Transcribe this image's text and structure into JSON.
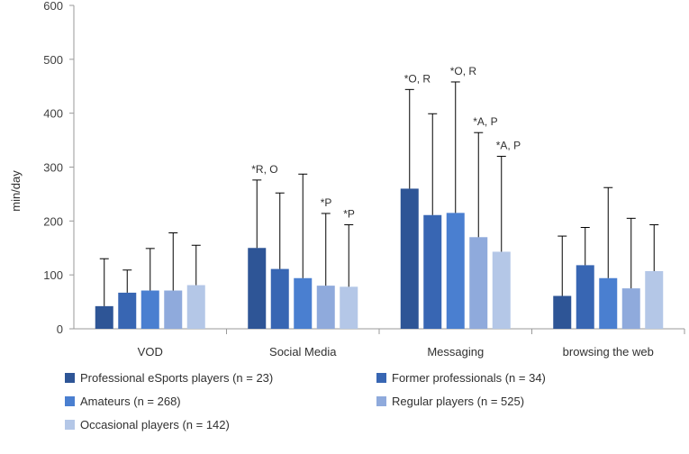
{
  "chart_data": {
    "type": "bar",
    "title": "",
    "xlabel": "",
    "ylabel": "min/day",
    "ylim": [
      0,
      600
    ],
    "yticks": [
      "0",
      "100",
      "200",
      "300",
      "400",
      "500",
      "600"
    ],
    "grid": false,
    "legend_position": "bottom",
    "categories": [
      "VOD",
      "Social Media",
      "Messaging",
      "browsing the web"
    ],
    "series": [
      {
        "name": "Professional eSports players (n = 23)",
        "color": "#2e5596",
        "values": [
          42,
          150,
          260,
          61
        ],
        "error_upper": [
          130,
          276,
          444,
          172
        ],
        "annotations": [
          "",
          "*R, O",
          "*O, R",
          ""
        ]
      },
      {
        "name": "Former professionals (n = 34)",
        "color": "#3866b3",
        "values": [
          67,
          111,
          211,
          118
        ],
        "error_upper": [
          109,
          252,
          399,
          188
        ],
        "annotations": [
          "",
          "",
          "",
          ""
        ]
      },
      {
        "name": "Amateurs (n = 268)",
        "color": "#4a7fd0",
        "values": [
          71,
          94,
          215,
          94
        ],
        "error_upper": [
          149,
          287,
          458,
          262
        ],
        "annotations": [
          "",
          "",
          "*O, R",
          ""
        ]
      },
      {
        "name": "Regular players (n = 525)",
        "color": "#8faadc",
        "values": [
          71,
          80,
          170,
          75
        ],
        "error_upper": [
          178,
          214,
          364,
          205
        ],
        "annotations": [
          "",
          "*P",
          "*A, P",
          ""
        ]
      },
      {
        "name": "Occasional players (n = 142)",
        "color": "#b4c7e7",
        "values": [
          81,
          78,
          143,
          107
        ],
        "error_upper": [
          155,
          193,
          320,
          193
        ],
        "annotations": [
          "",
          "*P",
          "*A, P",
          ""
        ]
      }
    ]
  }
}
